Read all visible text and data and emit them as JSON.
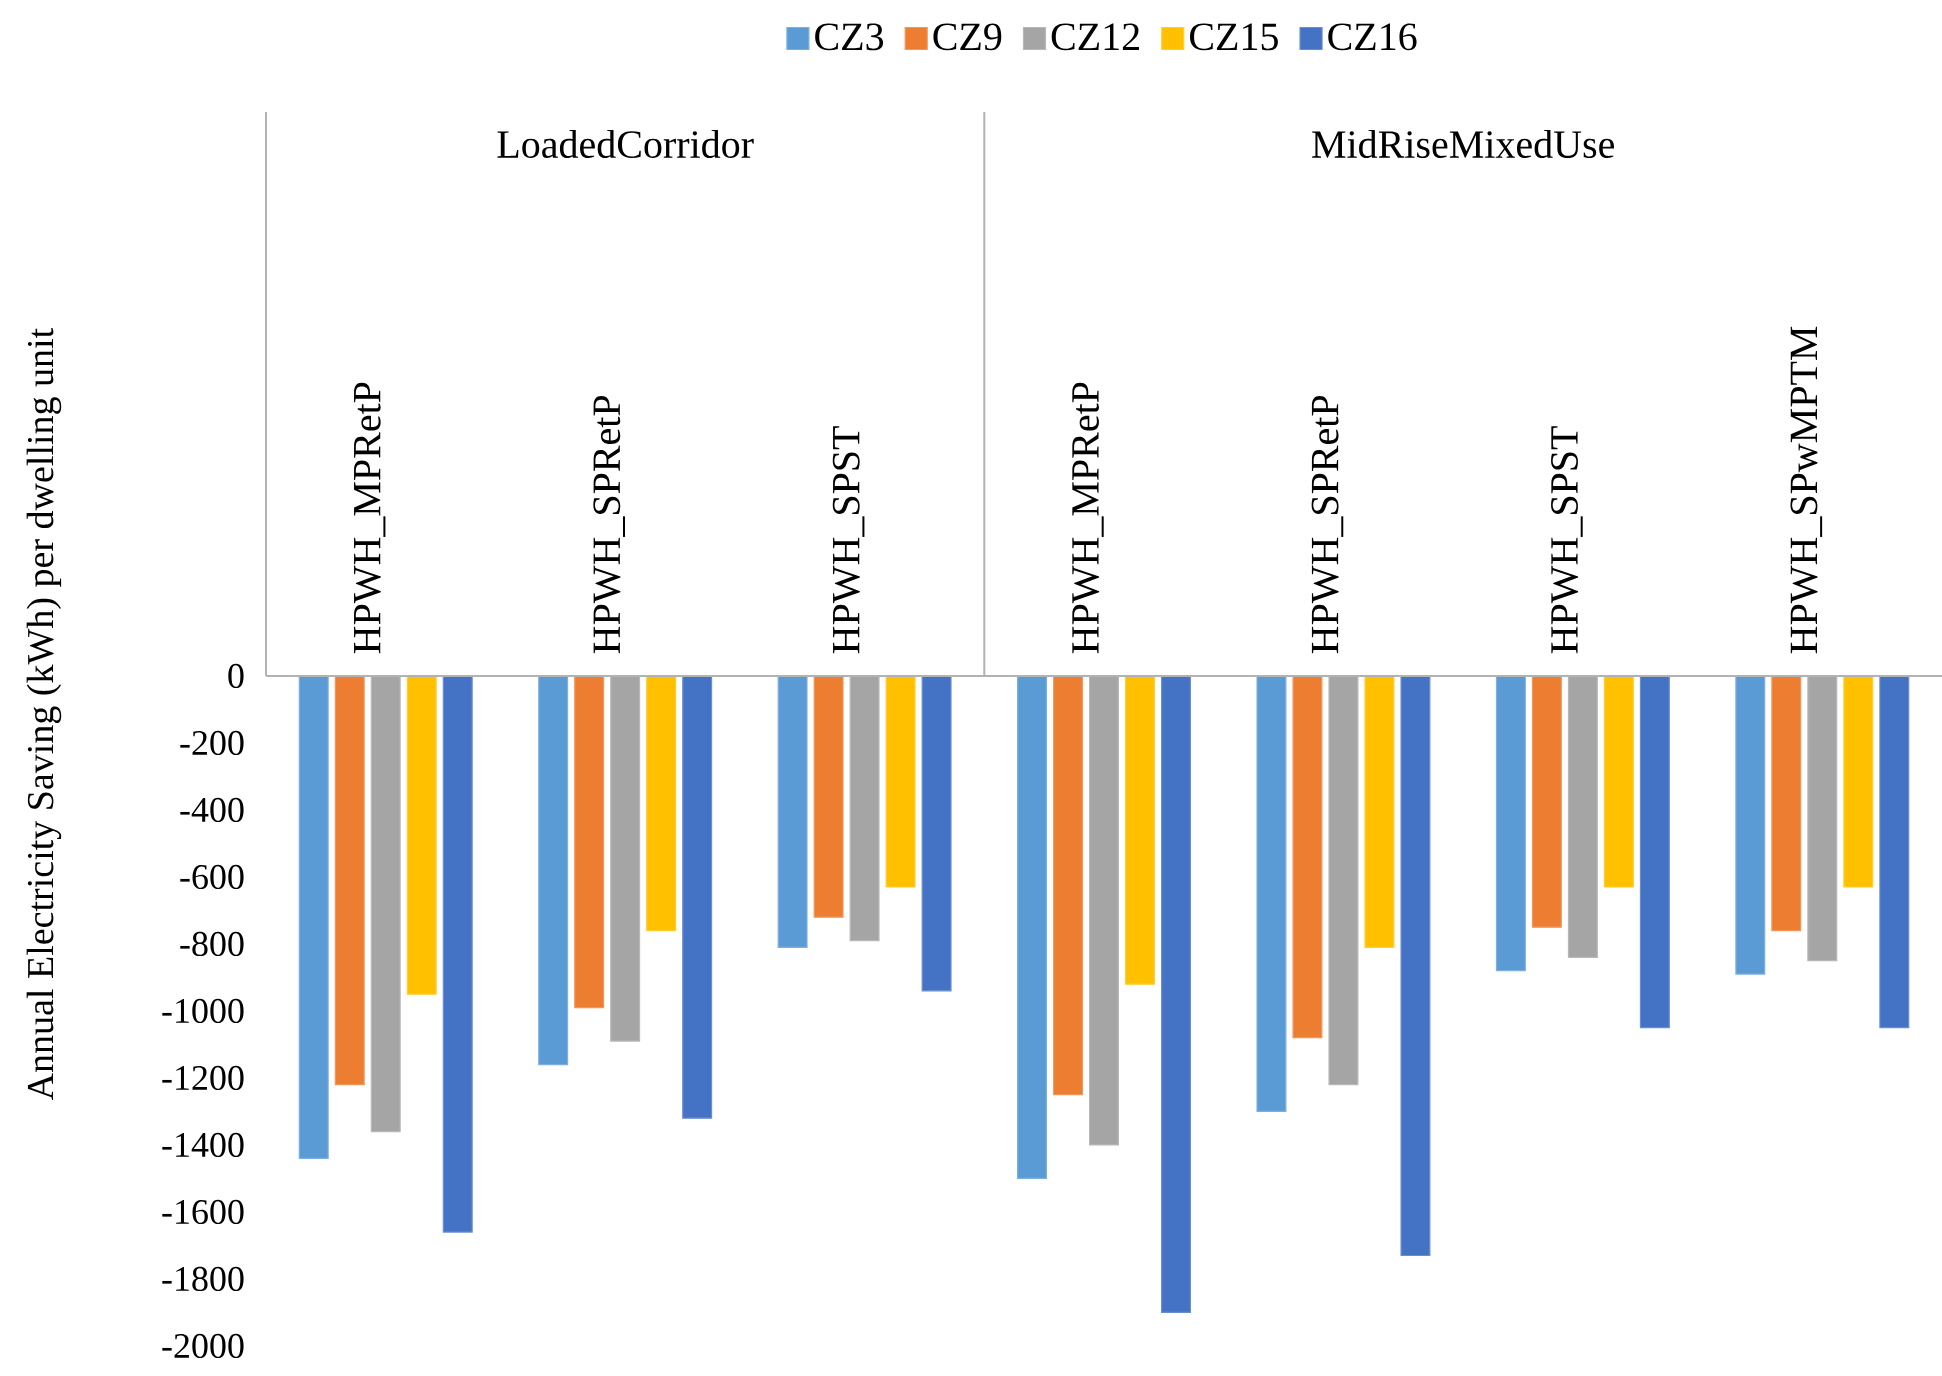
{
  "chart_data": {
    "type": "bar",
    "ylabel": "Annual Electricity  Saving (kWh) per dwelling unit",
    "categories": [
      "HPWH_MPRetP",
      "HPWH_SPRetP",
      "HPWH_SPST",
      "HPWH_MPRetP",
      "HPWH_SPRetP",
      "HPWH_SPST",
      "HPWH_SPwMPTM"
    ],
    "annotations": [
      "LoadedCorridor",
      "MidRiseMixedUse"
    ],
    "series": [
      {
        "name": "CZ3",
        "color": "#5b9bd5",
        "values": [
          -1440,
          -1160,
          -810,
          -1500,
          -1300,
          -880,
          -890
        ]
      },
      {
        "name": "CZ9",
        "color": "#ed7d31",
        "values": [
          -1220,
          -990,
          -720,
          -1250,
          -1080,
          -750,
          -760
        ]
      },
      {
        "name": "CZ12",
        "color": "#a5a5a5",
        "values": [
          -1360,
          -1090,
          -790,
          -1400,
          -1220,
          -840,
          -850
        ]
      },
      {
        "name": "CZ15",
        "color": "#ffc000",
        "values": [
          -950,
          -760,
          -630,
          -920,
          -810,
          -630,
          -630
        ]
      },
      {
        "name": "CZ16",
        "color": "#4472c4",
        "values": [
          -1660,
          -1320,
          -940,
          -1900,
          -1730,
          -1050,
          -1050
        ]
      }
    ],
    "ylim": [
      -2000,
      0
    ],
    "yticks": [
      0,
      -200,
      -400,
      -600,
      -800,
      -1000,
      -1200,
      -1400,
      -1600,
      -1800,
      -2000
    ],
    "legend": "top"
  }
}
